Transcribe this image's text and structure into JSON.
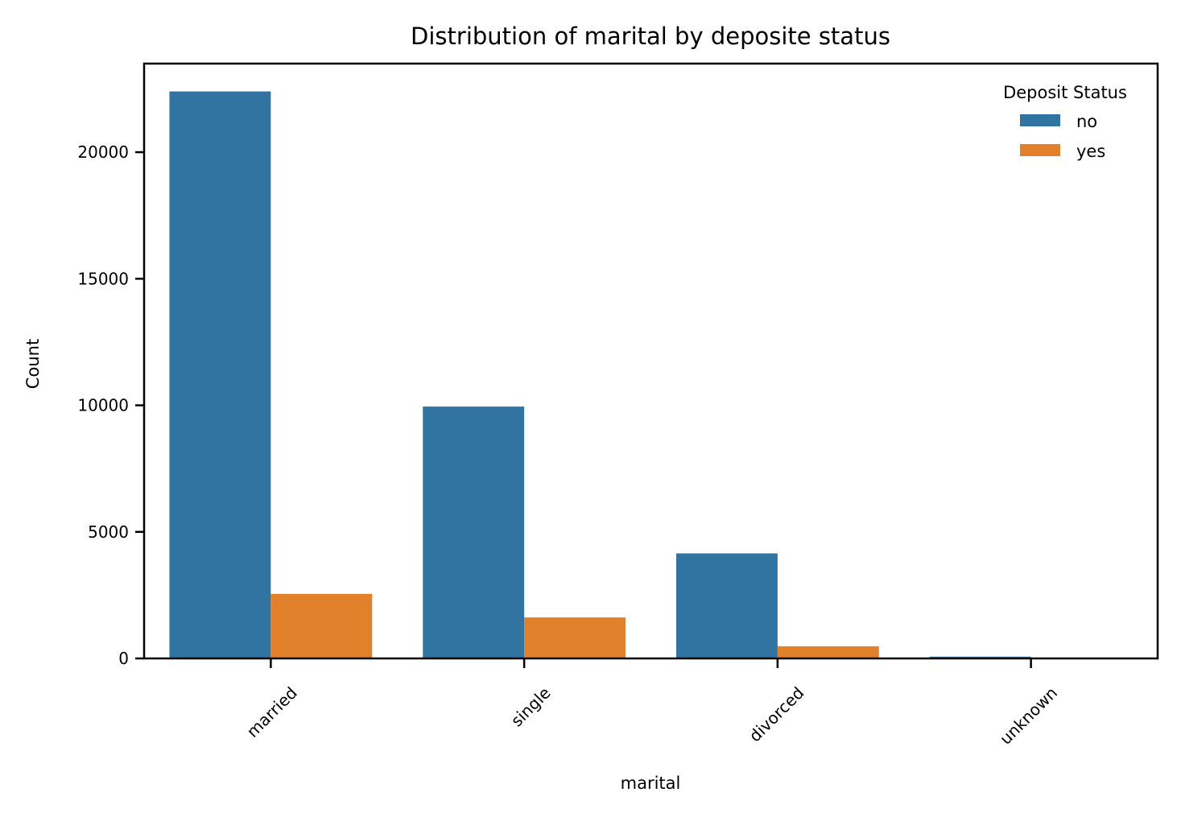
{
  "chart_data": {
    "type": "bar",
    "title": "Distribution of marital by deposite status",
    "xlabel": "marital",
    "ylabel": "Count",
    "categories": [
      "married",
      "single",
      "divorced",
      "unknown"
    ],
    "series": [
      {
        "name": "no",
        "color": "#3274a1",
        "values": [
          22400,
          9950,
          4150,
          70
        ]
      },
      {
        "name": "yes",
        "color": "#e1812c",
        "values": [
          2550,
          1620,
          480,
          12
        ]
      }
    ],
    "ylim": [
      0,
      23500
    ],
    "yticks": [
      0,
      5000,
      10000,
      15000,
      20000
    ],
    "ytick_labels": [
      "0",
      "5000",
      "10000",
      "15000",
      "20000"
    ],
    "legend": {
      "title": "Deposit Status",
      "position": "top-right"
    },
    "grid": false
  }
}
